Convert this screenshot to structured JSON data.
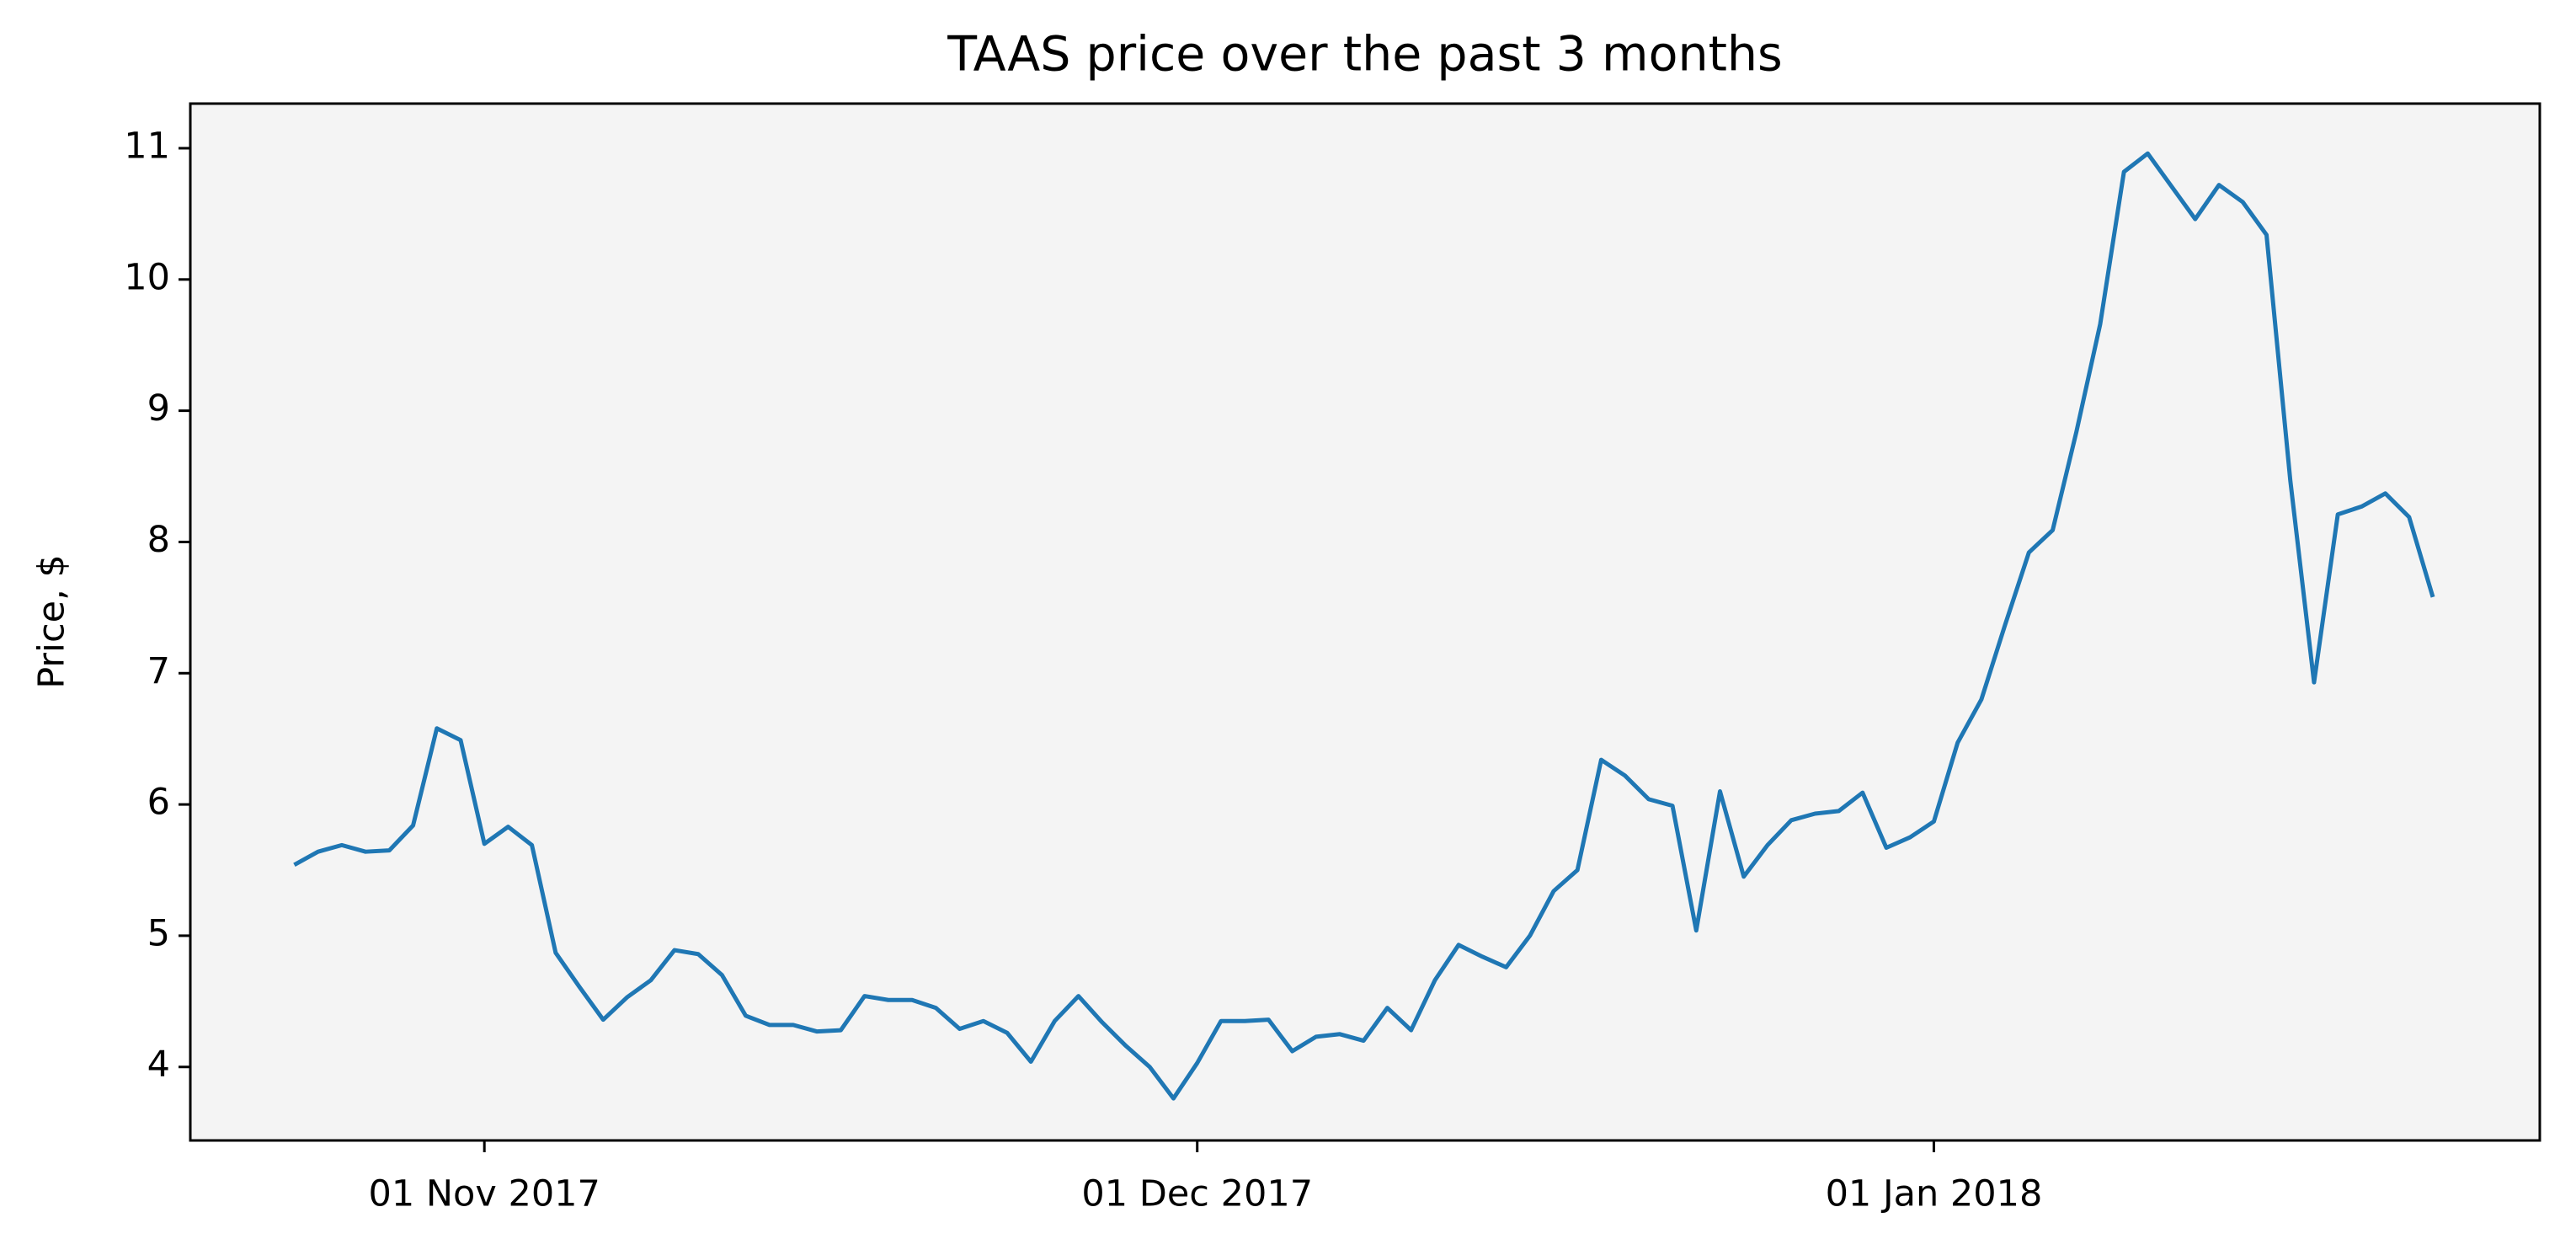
{
  "chart_data": {
    "type": "line",
    "title": "TAAS price over the past 3 months",
    "ylabel": "Price, $",
    "x": [
      "2017-10-24",
      "2017-10-25",
      "2017-10-26",
      "2017-10-27",
      "2017-10-28",
      "2017-10-29",
      "2017-10-30",
      "2017-10-31",
      "2017-11-01",
      "2017-11-02",
      "2017-11-03",
      "2017-11-04",
      "2017-11-05",
      "2017-11-06",
      "2017-11-07",
      "2017-11-08",
      "2017-11-09",
      "2017-11-10",
      "2017-11-11",
      "2017-11-12",
      "2017-11-13",
      "2017-11-14",
      "2017-11-15",
      "2017-11-16",
      "2017-11-17",
      "2017-11-18",
      "2017-11-19",
      "2017-11-20",
      "2017-11-21",
      "2017-11-22",
      "2017-11-23",
      "2017-11-24",
      "2017-11-25",
      "2017-11-26",
      "2017-11-27",
      "2017-11-28",
      "2017-11-29",
      "2017-11-30",
      "2017-12-01",
      "2017-12-02",
      "2017-12-03",
      "2017-12-04",
      "2017-12-05",
      "2017-12-06",
      "2017-12-07",
      "2017-12-08",
      "2017-12-09",
      "2017-12-10",
      "2017-12-11",
      "2017-12-12",
      "2017-12-13",
      "2017-12-14",
      "2017-12-15",
      "2017-12-16",
      "2017-12-17",
      "2017-12-18",
      "2017-12-19",
      "2017-12-20",
      "2017-12-21",
      "2017-12-22",
      "2017-12-23",
      "2017-12-24",
      "2017-12-25",
      "2017-12-26",
      "2017-12-27",
      "2017-12-28",
      "2017-12-29",
      "2017-12-30",
      "2017-12-31",
      "2018-01-01",
      "2018-01-02",
      "2018-01-03",
      "2018-01-04",
      "2018-01-05",
      "2018-01-06",
      "2018-01-07",
      "2018-01-08",
      "2018-01-09",
      "2018-01-10",
      "2018-01-11",
      "2018-01-12",
      "2018-01-13",
      "2018-01-14",
      "2018-01-15",
      "2018-01-16",
      "2018-01-17",
      "2018-01-18",
      "2018-01-19",
      "2018-01-20",
      "2018-01-21",
      "2018-01-22"
    ],
    "series": [
      {
        "name": "TAAS",
        "color": "#1f77b4",
        "values": [
          5.54,
          5.64,
          5.69,
          5.64,
          5.65,
          5.84,
          6.58,
          6.49,
          5.7,
          5.83,
          5.69,
          4.87,
          4.61,
          4.36,
          4.53,
          4.66,
          4.89,
          4.86,
          4.7,
          4.39,
          4.32,
          4.32,
          4.27,
          4.28,
          4.54,
          4.51,
          4.51,
          4.45,
          4.29,
          4.35,
          4.26,
          4.04,
          4.35,
          4.54,
          4.34,
          4.16,
          4.0,
          3.76,
          4.03,
          4.35,
          4.35,
          4.36,
          4.12,
          4.23,
          4.25,
          4.2,
          4.45,
          4.28,
          4.66,
          4.93,
          4.84,
          4.76,
          5.0,
          5.34,
          5.5,
          6.34,
          6.22,
          6.04,
          5.99,
          5.04,
          6.1,
          5.45,
          5.69,
          5.88,
          5.93,
          5.95,
          6.09,
          5.67,
          5.75,
          5.87,
          6.47,
          6.8,
          7.37,
          7.92,
          8.09,
          8.84,
          9.66,
          10.82,
          10.96,
          10.71,
          10.46,
          10.72,
          10.59,
          10.34,
          8.47,
          6.93,
          8.21,
          8.27,
          8.37,
          8.19,
          7.58
        ]
      }
    ],
    "xlim": [
      "2017-10-19T15:00",
      "2018-01-26T12:00"
    ],
    "xticks": [
      {
        "value": "2017-11-01",
        "label": "01 Nov 2017"
      },
      {
        "value": "2017-12-01",
        "label": "01 Dec 2017"
      },
      {
        "value": "2018-01-01",
        "label": "01 Jan 2018"
      }
    ],
    "ylim": [
      3.44,
      11.34
    ],
    "yticks": [
      4,
      5,
      6,
      7,
      8,
      9,
      10,
      11
    ],
    "grid": false
  }
}
